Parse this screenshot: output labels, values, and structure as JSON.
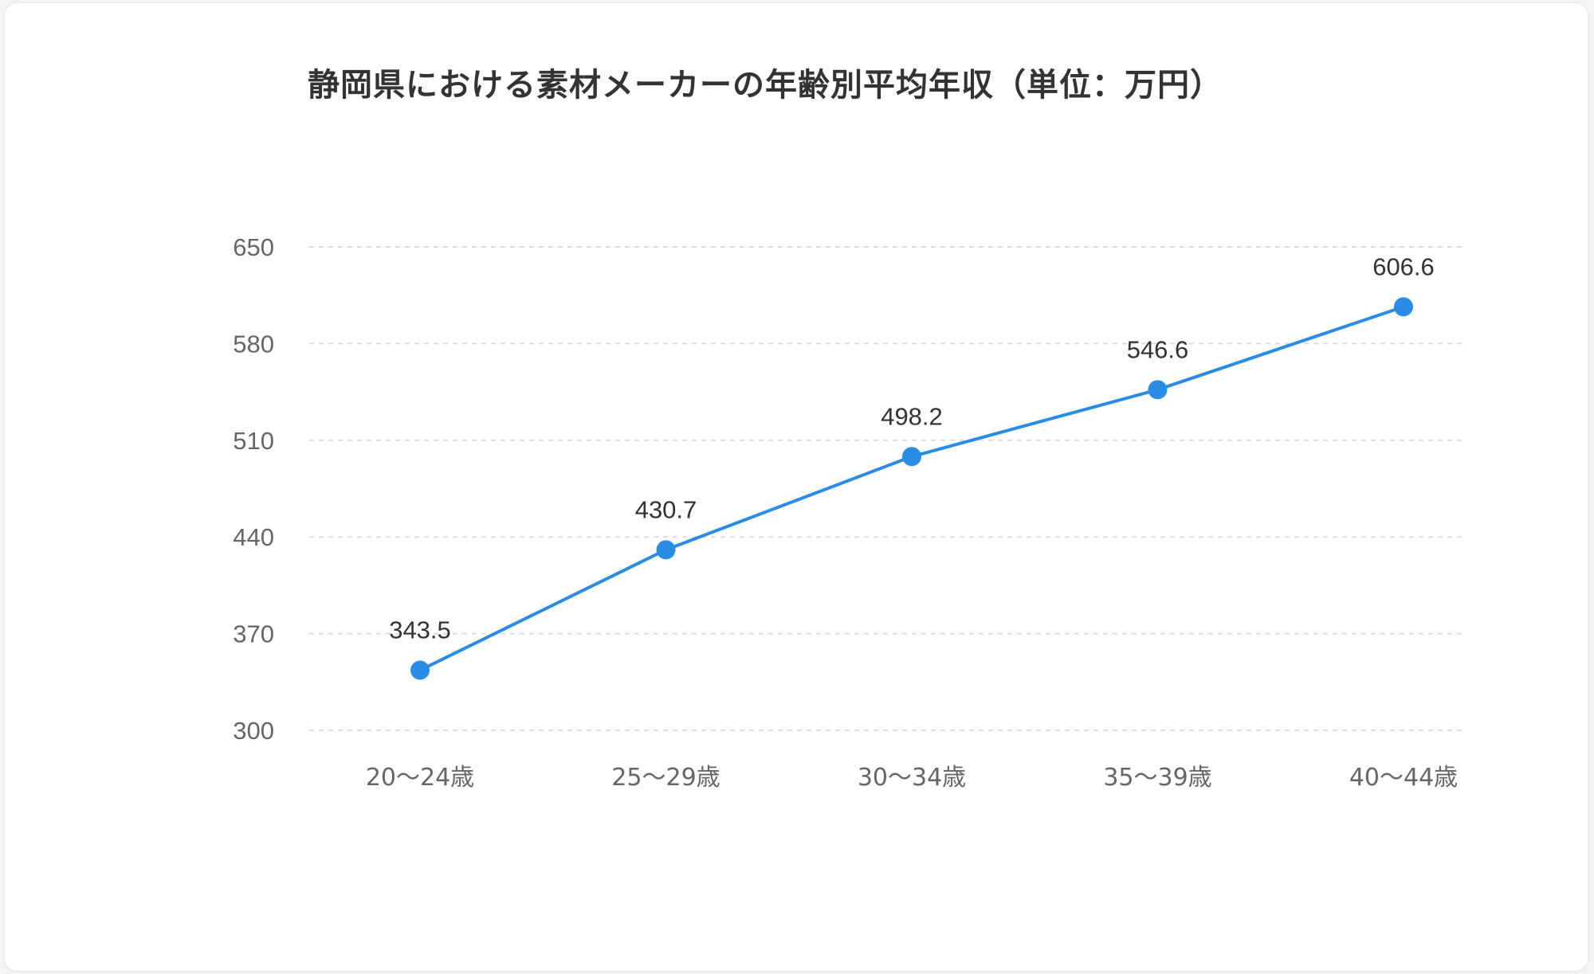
{
  "chart_data": {
    "type": "line",
    "title": "静岡県における素材メーカーの年齢別平均年収（単位：万円）",
    "xlabel": "",
    "ylabel": "",
    "categories": [
      "20〜24歳",
      "25〜29歳",
      "30〜34歳",
      "35〜39歳",
      "40〜44歳"
    ],
    "series": [
      {
        "values": [
          343.5,
          430.7,
          498.2,
          546.6,
          606.6
        ]
      }
    ],
    "data_labels": [
      "343.5",
      "430.7",
      "498.2",
      "546.6",
      "606.6"
    ],
    "ylim": [
      300,
      650
    ],
    "yticks": [
      300,
      370,
      440,
      510,
      580,
      650
    ],
    "ytick_labels": [
      "300",
      "370",
      "440",
      "510",
      "580",
      "650"
    ],
    "grid": true,
    "legend": "none",
    "colors": {
      "line": "#2b8ce6",
      "grid": "#dddddd"
    }
  }
}
